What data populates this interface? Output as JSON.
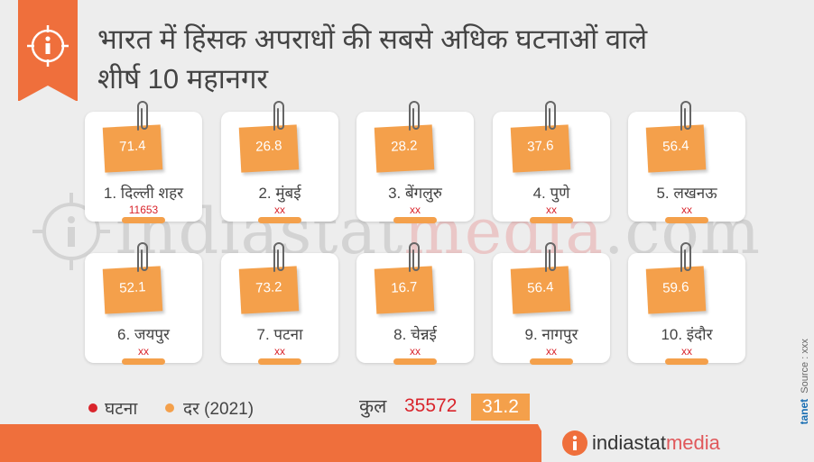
{
  "title_line1": "भारत में हिंसक अपराधों की सबसे अधिक घटनाओं वाले",
  "title_line2": "शीर्ष 10 महानगर",
  "watermark": {
    "part1": "indiastat",
    "part2": "media",
    "part3": ".com"
  },
  "cards": [
    {
      "rate": "71.4",
      "city": "1. दिल्ली शहर",
      "count": "11653"
    },
    {
      "rate": "26.8",
      "city": "2. मुंबई",
      "count": "xx"
    },
    {
      "rate": "28.2",
      "city": "3. बेंगलुरु",
      "count": "xx"
    },
    {
      "rate": "37.6",
      "city": "4. पुणे",
      "count": "xx"
    },
    {
      "rate": "56.4",
      "city": "5. लखनऊ",
      "count": "xx"
    },
    {
      "rate": "52.1",
      "city": "6. जयपुर",
      "count": "xx"
    },
    {
      "rate": "73.2",
      "city": "7. पटना",
      "count": "xx"
    },
    {
      "rate": "16.7",
      "city": "8. चेन्नई",
      "count": "xx"
    },
    {
      "rate": "56.4",
      "city": "9. नागपुर",
      "count": "xx"
    },
    {
      "rate": "59.6",
      "city": "10. इंदौर",
      "count": "xx"
    }
  ],
  "legend": {
    "incidents": "घटना",
    "rate": "दर (2021)"
  },
  "total": {
    "label": "कुल",
    "count": "35572",
    "rate": "31.2"
  },
  "source": {
    "label": "Source : xxx",
    "brand": "Datanet",
    "copyright": "©"
  },
  "footer": {
    "logo_part1": "indiastat",
    "logo_part2": "media"
  },
  "colors": {
    "accent": "#ef6f3c",
    "note": "#f4a04b",
    "count": "#d9242b"
  }
}
